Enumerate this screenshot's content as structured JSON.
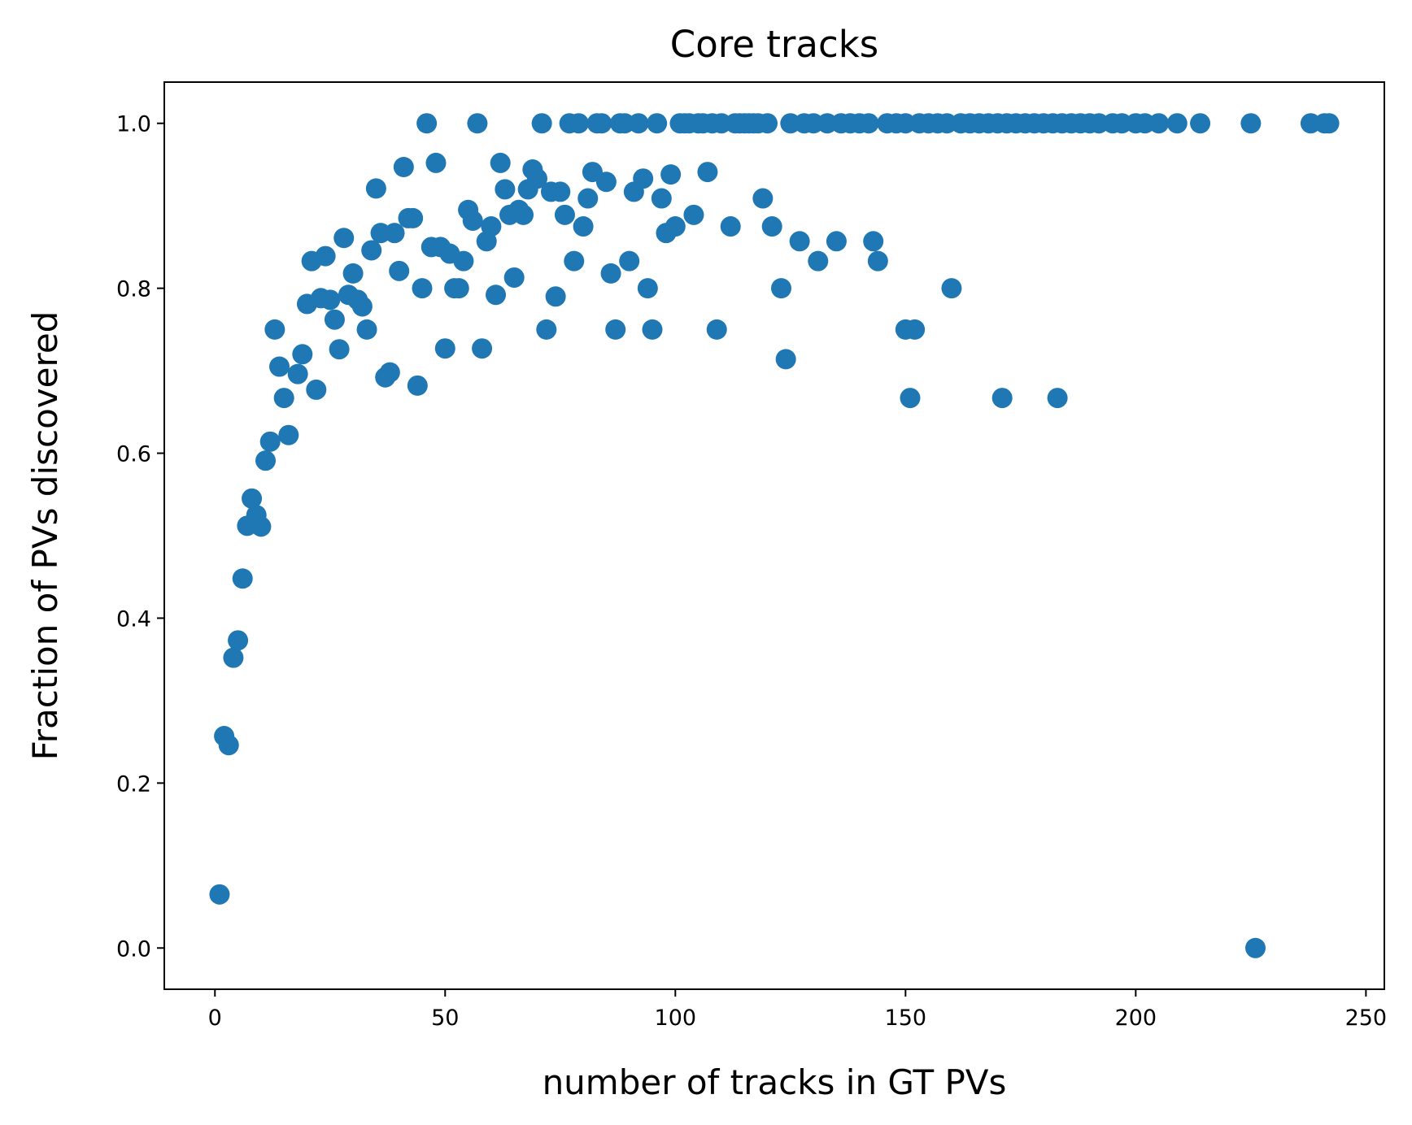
{
  "chart_data": {
    "type": "scatter",
    "title": "Core tracks",
    "xlabel": "number of tracks in GT PVs",
    "ylabel": "Fraction of PVs discovered",
    "xlim": [
      -11,
      254
    ],
    "ylim": [
      -0.05,
      1.05
    ],
    "xticks": [
      0,
      50,
      100,
      150,
      200,
      250
    ],
    "yticks": [
      0.0,
      0.2,
      0.4,
      0.6,
      0.8,
      1.0
    ],
    "xtick_labels": [
      "0",
      "50",
      "100",
      "150",
      "200",
      "250"
    ],
    "ytick_labels": [
      "0.0",
      "0.2",
      "0.4",
      "0.6",
      "0.8",
      "1.0"
    ],
    "grid": false,
    "legend": false,
    "color": "#1f77b4",
    "points": [
      [
        1,
        0.065
      ],
      [
        2,
        0.257
      ],
      [
        3,
        0.246
      ],
      [
        4,
        0.352
      ],
      [
        5,
        0.373
      ],
      [
        6,
        0.448
      ],
      [
        7,
        0.512
      ],
      [
        8,
        0.545
      ],
      [
        9,
        0.525
      ],
      [
        10,
        0.511
      ],
      [
        11,
        0.591
      ],
      [
        12,
        0.614
      ],
      [
        13,
        0.75
      ],
      [
        14,
        0.705
      ],
      [
        15,
        0.667
      ],
      [
        16,
        0.622
      ],
      [
        18,
        0.696
      ],
      [
        19,
        0.72
      ],
      [
        20,
        0.781
      ],
      [
        21,
        0.833
      ],
      [
        22,
        0.677
      ],
      [
        23,
        0.788
      ],
      [
        24,
        0.839
      ],
      [
        25,
        0.786
      ],
      [
        26,
        0.762
      ],
      [
        27,
        0.726
      ],
      [
        28,
        0.861
      ],
      [
        29,
        0.792
      ],
      [
        30,
        0.818
      ],
      [
        31,
        0.786
      ],
      [
        32,
        0.778
      ],
      [
        33,
        0.75
      ],
      [
        34,
        0.846
      ],
      [
        35,
        0.921
      ],
      [
        36,
        0.867
      ],
      [
        37,
        0.692
      ],
      [
        38,
        0.698
      ],
      [
        39,
        0.867
      ],
      [
        40,
        0.821
      ],
      [
        41,
        0.947
      ],
      [
        42,
        0.885
      ],
      [
        43,
        0.885
      ],
      [
        44,
        0.682
      ],
      [
        45,
        0.8
      ],
      [
        46,
        1.0
      ],
      [
        47,
        0.85
      ],
      [
        48,
        0.952
      ],
      [
        49,
        0.85
      ],
      [
        50,
        0.727
      ],
      [
        51,
        0.842
      ],
      [
        52,
        0.8
      ],
      [
        53,
        0.8
      ],
      [
        54,
        0.833
      ],
      [
        55,
        0.895
      ],
      [
        56,
        0.882
      ],
      [
        57,
        1.0
      ],
      [
        58,
        0.727
      ],
      [
        59,
        0.857
      ],
      [
        60,
        0.875
      ],
      [
        61,
        0.792
      ],
      [
        62,
        0.952
      ],
      [
        63,
        0.92
      ],
      [
        64,
        0.889
      ],
      [
        65,
        0.813
      ],
      [
        66,
        0.895
      ],
      [
        67,
        0.889
      ],
      [
        68,
        0.92
      ],
      [
        69,
        0.944
      ],
      [
        70,
        0.933
      ],
      [
        71,
        1.0
      ],
      [
        72,
        0.75
      ],
      [
        73,
        0.917
      ],
      [
        74,
        0.79
      ],
      [
        75,
        0.917
      ],
      [
        76,
        0.889
      ],
      [
        77,
        1.0
      ],
      [
        78,
        0.833
      ],
      [
        79,
        1.0
      ],
      [
        80,
        0.875
      ],
      [
        81,
        0.909
      ],
      [
        82,
        0.941
      ],
      [
        83,
        1.0
      ],
      [
        84,
        1.0
      ],
      [
        85,
        0.929
      ],
      [
        86,
        0.818
      ],
      [
        87,
        0.75
      ],
      [
        88,
        1.0
      ],
      [
        89,
        1.0
      ],
      [
        90,
        0.833
      ],
      [
        91,
        0.917
      ],
      [
        92,
        1.0
      ],
      [
        93,
        0.933
      ],
      [
        94,
        0.8
      ],
      [
        95,
        0.75
      ],
      [
        96,
        1.0
      ],
      [
        97,
        0.909
      ],
      [
        98,
        0.867
      ],
      [
        99,
        0.938
      ],
      [
        100,
        0.875
      ],
      [
        101,
        1.0
      ],
      [
        102,
        1.0
      ],
      [
        103,
        1.0
      ],
      [
        104,
        0.889
      ],
      [
        105,
        1.0
      ],
      [
        106,
        1.0
      ],
      [
        107,
        0.941
      ],
      [
        108,
        1.0
      ],
      [
        109,
        0.75
      ],
      [
        110,
        1.0
      ],
      [
        112,
        0.875
      ],
      [
        113,
        1.0
      ],
      [
        114,
        1.0
      ],
      [
        115,
        1.0
      ],
      [
        116,
        1.0
      ],
      [
        117,
        1.0
      ],
      [
        118,
        1.0
      ],
      [
        119,
        0.909
      ],
      [
        120,
        1.0
      ],
      [
        121,
        0.875
      ],
      [
        123,
        0.8
      ],
      [
        124,
        0.714
      ],
      [
        125,
        1.0
      ],
      [
        127,
        0.857
      ],
      [
        128,
        1.0
      ],
      [
        130,
        1.0
      ],
      [
        131,
        0.833
      ],
      [
        133,
        1.0
      ],
      [
        135,
        0.857
      ],
      [
        136,
        1.0
      ],
      [
        138,
        1.0
      ],
      [
        140,
        1.0
      ],
      [
        142,
        1.0
      ],
      [
        143,
        0.857
      ],
      [
        144,
        0.833
      ],
      [
        146,
        1.0
      ],
      [
        148,
        1.0
      ],
      [
        150,
        0.75
      ],
      [
        150,
        1.0
      ],
      [
        151,
        0.667
      ],
      [
        152,
        0.75
      ],
      [
        153,
        1.0
      ],
      [
        155,
        1.0
      ],
      [
        157,
        1.0
      ],
      [
        159,
        1.0
      ],
      [
        160,
        0.8
      ],
      [
        162,
        1.0
      ],
      [
        164,
        1.0
      ],
      [
        166,
        1.0
      ],
      [
        168,
        1.0
      ],
      [
        170,
        1.0
      ],
      [
        171,
        0.667
      ],
      [
        172,
        1.0
      ],
      [
        174,
        1.0
      ],
      [
        176,
        1.0
      ],
      [
        178,
        1.0
      ],
      [
        180,
        1.0
      ],
      [
        182,
        1.0
      ],
      [
        183,
        0.667
      ],
      [
        184,
        1.0
      ],
      [
        186,
        1.0
      ],
      [
        188,
        1.0
      ],
      [
        190,
        1.0
      ],
      [
        192,
        1.0
      ],
      [
        195,
        1.0
      ],
      [
        197,
        1.0
      ],
      [
        200,
        1.0
      ],
      [
        202,
        1.0
      ],
      [
        205,
        1.0
      ],
      [
        209,
        1.0
      ],
      [
        214,
        1.0
      ],
      [
        225,
        1.0
      ],
      [
        226,
        0.0
      ],
      [
        238,
        1.0
      ],
      [
        241,
        1.0
      ],
      [
        242,
        1.0
      ]
    ]
  }
}
